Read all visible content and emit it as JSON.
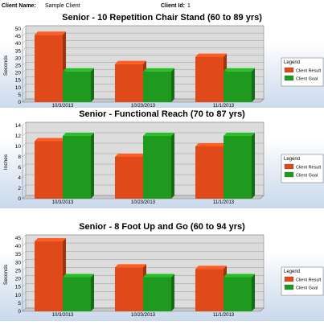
{
  "header": {
    "client_name_label": "Client Name:",
    "client_name_value": "Sample Client",
    "client_id_label": "Client Id:",
    "client_id_value": "1"
  },
  "colors": {
    "client_result": "#e04a1a",
    "client_goal": "#1f9a1f",
    "plot_back": "#dcdcdc"
  },
  "chart_data": [
    {
      "type": "bar",
      "title": "Senior - 10 Repetition Chair Stand (60 to 89 yrs)",
      "ylabel": "Seconds",
      "xlabel": "",
      "categories": [
        "10/3/2013",
        "10/23/2013",
        "11/1/2013"
      ],
      "ylim": [
        0,
        50
      ],
      "yticks": [
        0,
        5,
        10,
        15,
        20,
        25,
        30,
        35,
        40,
        45,
        50
      ],
      "legend_title": "Legend",
      "series": [
        {
          "name": "Client Result",
          "values": [
            46,
            26,
            31
          ]
        },
        {
          "name": "Client Goal",
          "values": [
            21,
            21,
            21
          ]
        }
      ],
      "grid": true,
      "legend_position": "right"
    },
    {
      "type": "bar",
      "title": "Senior - Functional Reach (70 to 87 yrs)",
      "ylabel": "Inches",
      "xlabel": "",
      "categories": [
        "10/3/2013",
        "10/23/2013",
        "11/1/2013"
      ],
      "ylim": [
        0,
        14
      ],
      "yticks": [
        0,
        2,
        4,
        6,
        8,
        10,
        12,
        14
      ],
      "legend_title": "Legend",
      "series": [
        {
          "name": "Client Result",
          "values": [
            11,
            8,
            10
          ]
        },
        {
          "name": "Client Goal",
          "values": [
            12,
            12,
            12
          ]
        }
      ],
      "grid": true,
      "legend_position": "right"
    },
    {
      "type": "bar",
      "title": "Senior - 8 Foot Up and Go (60 to 94 yrs)",
      "ylabel": "Seconds",
      "xlabel": "",
      "categories": [
        "10/3/2013",
        "10/23/2013",
        "11/1/2013"
      ],
      "ylim": [
        0,
        45
      ],
      "yticks": [
        0,
        5,
        10,
        15,
        20,
        25,
        30,
        35,
        40,
        45
      ],
      "legend_title": "Legend",
      "series": [
        {
          "name": "Client Result",
          "values": [
            43,
            27,
            26
          ]
        },
        {
          "name": "Client Goal",
          "values": [
            21,
            21,
            21
          ]
        }
      ],
      "grid": true,
      "legend_position": "right"
    }
  ]
}
